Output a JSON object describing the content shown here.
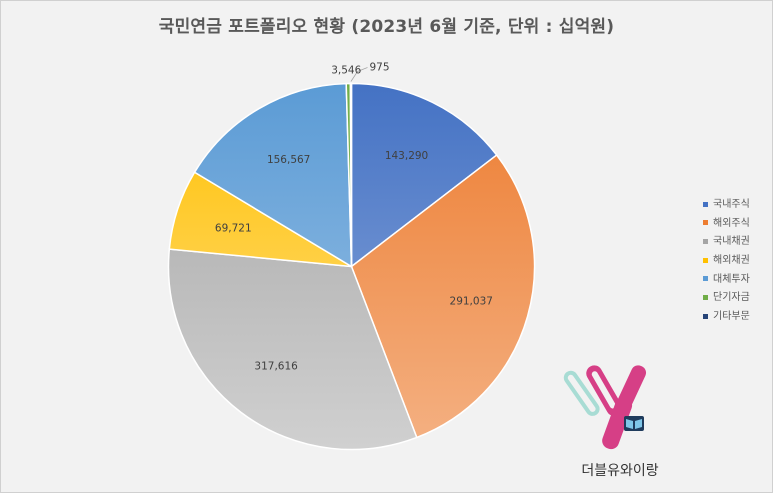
{
  "chart_data": {
    "type": "pie",
    "title": "국민연금 포트폴리오 현황 (2023년 6월 기준, 단위 : 십억원)",
    "categories": [
      "국내주식",
      "해외주식",
      "국내채권",
      "해외채권",
      "대체투자",
      "단기자금",
      "기타부문"
    ],
    "values": [
      143290,
      291037,
      317616,
      69721,
      156567,
      3546,
      975
    ],
    "labels": [
      "143,290",
      "291,037",
      "317,616",
      "69,721",
      "156,567",
      "3,546",
      "975"
    ],
    "colors": [
      "#4472c4",
      "#ed7d31",
      "#a5a5a5",
      "#ffc000",
      "#5b9bd5",
      "#70ad47",
      "#264478"
    ],
    "colors_light": [
      "#8ea9db",
      "#f4b183",
      "#d0d0d0",
      "#ffe08a",
      "#9dc3e6",
      "#a9d18e",
      "#5270a8"
    ],
    "start_angle_deg": 0,
    "direction": "clockwise",
    "legend_position": "right"
  },
  "logo": {
    "text": "더블유와이랑",
    "icon": "wy-logo-icon"
  }
}
